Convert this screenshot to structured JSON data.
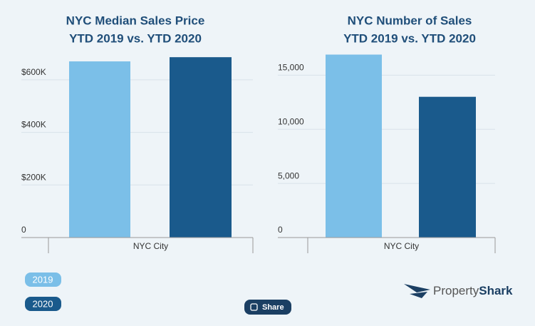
{
  "chart_data": [
    {
      "type": "bar",
      "title": "NYC Median Sales  Price",
      "subtitle": "YTD 2019 vs. YTD 2020",
      "categories": [
        "NYC City"
      ],
      "series": [
        {
          "name": "2019",
          "color": "#7bbfe8",
          "values": [
            670000
          ]
        },
        {
          "name": "2020",
          "color": "#1a5a8c",
          "values": [
            686000
          ]
        }
      ],
      "ylim": [
        0,
        700000
      ],
      "yticks": [
        0,
        {
          "value": 200000,
          "label": "$200K"
        },
        {
          "value": 400000,
          "label": "$400K"
        },
        {
          "value": 600000,
          "label": "$600K"
        }
      ],
      "grid": true
    },
    {
      "type": "bar",
      "title": "NYC Number of Sales",
      "subtitle": "YTD 2019 vs. YTD 2020",
      "categories": [
        "NYC City"
      ],
      "series": [
        {
          "name": "2019",
          "color": "#7bbfe8",
          "values": [
            16900
          ]
        },
        {
          "name": "2020",
          "color": "#1a5a8c",
          "values": [
            13000
          ]
        }
      ],
      "ylim": [
        0,
        17000
      ],
      "yticks": [
        0,
        {
          "value": 5000,
          "label": "5,000"
        },
        {
          "value": 10000,
          "label": "10,000"
        },
        {
          "value": 15000,
          "label": "15,000"
        }
      ],
      "grid": true
    }
  ],
  "ui": {
    "share": "Share",
    "logo_prefix": "Property",
    "logo_suffix": "Shark"
  }
}
